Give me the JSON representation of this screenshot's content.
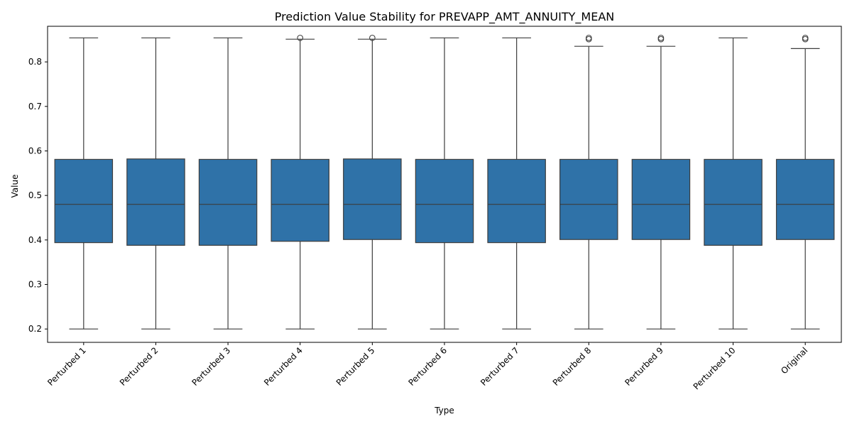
{
  "chart_data": {
    "type": "box",
    "title": "Prediction Value Stability for PREVAPP_AMT_ANNUITY_MEAN",
    "xlabel": "Type",
    "ylabel": "Value",
    "ylim": [
      0.17,
      0.88
    ],
    "yticks": [
      "0.2",
      "0.3",
      "0.4",
      "0.5",
      "0.6",
      "0.7",
      "0.8"
    ],
    "ytick_values": [
      0.2,
      0.3,
      0.4,
      0.5,
      0.6,
      0.7,
      0.8
    ],
    "grid": false,
    "box_color": "#2f72a8",
    "line_color": "#3d3d3d",
    "categories": [
      "Perturbed 1",
      "Perturbed 2",
      "Perturbed 3",
      "Perturbed 4",
      "Perturbed 5",
      "Perturbed 6",
      "Perturbed 7",
      "Perturbed 8",
      "Perturbed 9",
      "Perturbed 10",
      "Original"
    ],
    "boxes": [
      {
        "whisker_low": 0.2,
        "q1": 0.394,
        "median": 0.48,
        "q3": 0.581,
        "whisker_high": 0.854,
        "outliers": []
      },
      {
        "whisker_low": 0.2,
        "q1": 0.388,
        "median": 0.48,
        "q3": 0.582,
        "whisker_high": 0.854,
        "outliers": []
      },
      {
        "whisker_low": 0.2,
        "q1": 0.388,
        "median": 0.48,
        "q3": 0.581,
        "whisker_high": 0.854,
        "outliers": []
      },
      {
        "whisker_low": 0.2,
        "q1": 0.397,
        "median": 0.48,
        "q3": 0.581,
        "whisker_high": 0.851,
        "outliers": [
          0.854
        ]
      },
      {
        "whisker_low": 0.2,
        "q1": 0.401,
        "median": 0.48,
        "q3": 0.582,
        "whisker_high": 0.851,
        "outliers": [
          0.854
        ]
      },
      {
        "whisker_low": 0.2,
        "q1": 0.394,
        "median": 0.48,
        "q3": 0.581,
        "whisker_high": 0.854,
        "outliers": []
      },
      {
        "whisker_low": 0.2,
        "q1": 0.394,
        "median": 0.48,
        "q3": 0.581,
        "whisker_high": 0.854,
        "outliers": []
      },
      {
        "whisker_low": 0.2,
        "q1": 0.401,
        "median": 0.48,
        "q3": 0.581,
        "whisker_high": 0.835,
        "outliers": [
          0.851,
          0.854
        ]
      },
      {
        "whisker_low": 0.2,
        "q1": 0.401,
        "median": 0.48,
        "q3": 0.581,
        "whisker_high": 0.835,
        "outliers": [
          0.851,
          0.854
        ]
      },
      {
        "whisker_low": 0.2,
        "q1": 0.388,
        "median": 0.48,
        "q3": 0.581,
        "whisker_high": 0.854,
        "outliers": []
      },
      {
        "whisker_low": 0.2,
        "q1": 0.401,
        "median": 0.48,
        "q3": 0.581,
        "whisker_high": 0.83,
        "outliers": [
          0.851,
          0.854
        ]
      }
    ]
  }
}
